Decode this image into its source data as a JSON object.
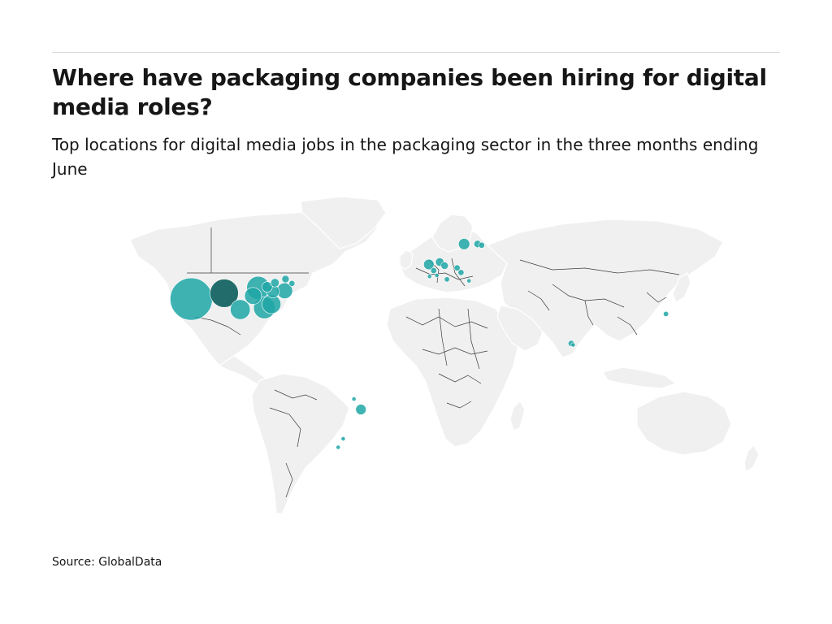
{
  "header": {
    "title": "Where have packaging companies been hiring for digital media roles?",
    "subtitle": "Top locations for digital media jobs in the packaging sector in the three months ending June"
  },
  "footer": {
    "source": "Source: GlobalData"
  },
  "map": {
    "land_color": "#f0f0f0",
    "border_color": "#3c3c3c",
    "bubble_color": "#1fa6a6",
    "bubble_overlap_color": "#0b5e5c",
    "locations": [
      {
        "lat": 37.3,
        "lon": -121.9,
        "value": 100
      },
      {
        "lat": 39.7,
        "lon": -105.0,
        "value": 45
      },
      {
        "lat": 41.9,
        "lon": -87.6,
        "value": 30
      },
      {
        "lat": 38.6,
        "lon": -90.2,
        "value": 16
      },
      {
        "lat": 33.0,
        "lon": -96.8,
        "value": 22
      },
      {
        "lat": 35.2,
        "lon": -80.8,
        "value": 20
      },
      {
        "lat": 33.7,
        "lon": -84.4,
        "value": 26
      },
      {
        "lat": 40.4,
        "lon": -80.0,
        "value": 9
      },
      {
        "lat": 40.7,
        "lon": -74.0,
        "value": 14
      },
      {
        "lat": 42.3,
        "lon": -83.0,
        "value": 6
      },
      {
        "lat": 44.0,
        "lon": -79.0,
        "value": 4
      },
      {
        "lat": 45.5,
        "lon": -73.6,
        "value": 3
      },
      {
        "lat": 43.7,
        "lon": -70.3,
        "value": 2
      },
      {
        "lat": 51.5,
        "lon": -0.1,
        "value": 6
      },
      {
        "lat": 52.5,
        "lon": 5.5,
        "value": 4
      },
      {
        "lat": 51.0,
        "lon": 8.0,
        "value": 3
      },
      {
        "lat": 50.1,
        "lon": 14.4,
        "value": 2
      },
      {
        "lat": 48.2,
        "lon": 16.4,
        "value": 2
      },
      {
        "lat": 49.0,
        "lon": 2.4,
        "value": 2
      },
      {
        "lat": 45.4,
        "lon": 9.2,
        "value": 1.5
      },
      {
        "lat": 46.6,
        "lon": 0.3,
        "value": 1
      },
      {
        "lat": 47.0,
        "lon": 4.0,
        "value": 1
      },
      {
        "lat": 44.8,
        "lon": 20.5,
        "value": 1
      },
      {
        "lat": 59.9,
        "lon": 18.0,
        "value": 7
      },
      {
        "lat": 59.9,
        "lon": 24.9,
        "value": 3
      },
      {
        "lat": 59.4,
        "lon": 27.0,
        "value": 2
      },
      {
        "lat": 19.1,
        "lon": 72.9,
        "value": 2
      },
      {
        "lat": 18.5,
        "lon": 73.9,
        "value": 1
      },
      {
        "lat": 31.2,
        "lon": 121.5,
        "value": 1.5
      },
      {
        "lat": -8.0,
        "lon": -34.9,
        "value": 6
      },
      {
        "lat": -3.7,
        "lon": -38.5,
        "value": 1
      },
      {
        "lat": -20.0,
        "lon": -44.0,
        "value": 1
      },
      {
        "lat": -23.5,
        "lon": -46.6,
        "value": 1
      }
    ]
  }
}
